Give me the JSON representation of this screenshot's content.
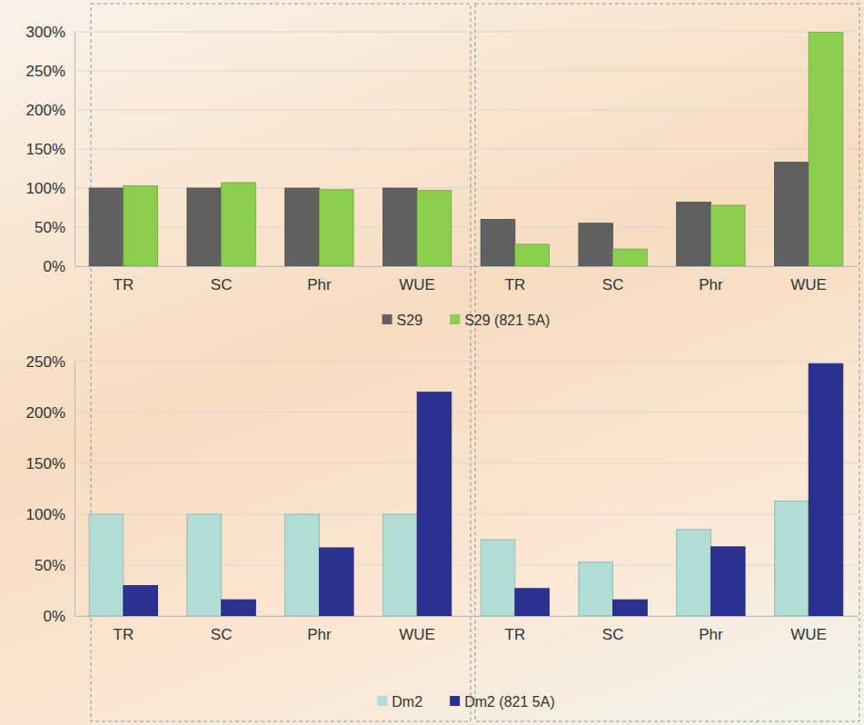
{
  "chart_data": [
    {
      "type": "bar",
      "categories": [
        "TR",
        "SC",
        "Phr",
        "WUE",
        "TR",
        "SC",
        "Phr",
        "WUE"
      ],
      "series": [
        {
          "name": "S29",
          "color": "#5f6062",
          "values": [
            100,
            100,
            100,
            100,
            60,
            55,
            82,
            133
          ]
        },
        {
          "name": "S29 (821 5A)",
          "color": "#8ccf4e",
          "values": [
            103,
            107,
            98,
            97,
            28,
            22,
            78,
            300
          ]
        }
      ],
      "ylim": [
        0,
        300
      ],
      "yticks": [
        {
          "value": 0,
          "label": "0%"
        },
        {
          "value": 50,
          "label": "50%"
        },
        {
          "value": 100,
          "label": "100%"
        },
        {
          "value": 150,
          "label": "150%"
        },
        {
          "value": 200,
          "label": "200%"
        },
        {
          "value": 250,
          "label": "250%"
        },
        {
          "value": 300,
          "label": "300%"
        }
      ],
      "grid": true,
      "legend": "bottom"
    },
    {
      "type": "bar",
      "categories": [
        "TR",
        "SC",
        "Phr",
        "WUE",
        "TR",
        "SC",
        "Phr",
        "WUE"
      ],
      "series": [
        {
          "name": "Dm2",
          "color": "#b0ded6",
          "values": [
            100,
            100,
            100,
            100,
            75,
            53,
            85,
            113
          ]
        },
        {
          "name": "Dm2 (821 5A)",
          "color": "#2b3190",
          "values": [
            30,
            16,
            67,
            220,
            27,
            16,
            68,
            248
          ]
        }
      ],
      "ylim": [
        0,
        250
      ],
      "yticks": [
        {
          "value": 0,
          "label": "0%"
        },
        {
          "value": 50,
          "label": "50%"
        },
        {
          "value": 100,
          "label": "100%"
        },
        {
          "value": 150,
          "label": "150%"
        },
        {
          "value": 200,
          "label": "200%"
        },
        {
          "value": 250,
          "label": "250%"
        }
      ],
      "grid": true,
      "legend": "bottom"
    }
  ]
}
